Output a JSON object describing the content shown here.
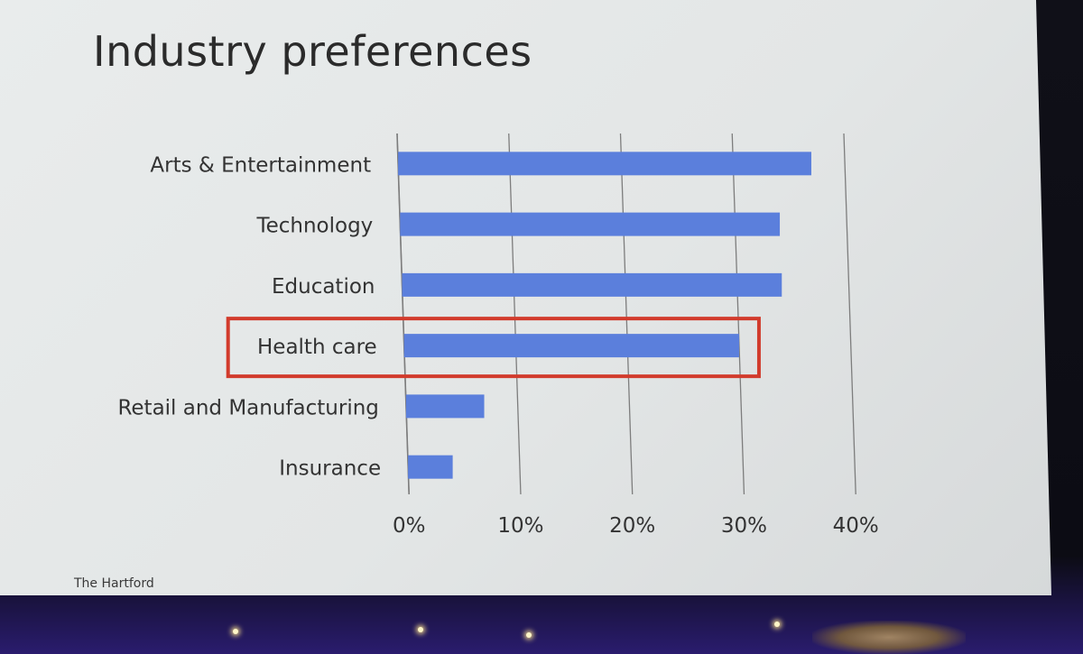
{
  "slide": {
    "title": "Industry preferences",
    "source": "The Hartford"
  },
  "colors": {
    "bar": "#5b7fdc",
    "highlight_box": "#d23b2c",
    "gridline": "#7d7d7d",
    "text": "#333333"
  },
  "chart_data": {
    "type": "bar",
    "orientation": "horizontal",
    "title": "Industry preferences",
    "categories": [
      "Arts & Entertainment",
      "Technology",
      "Education",
      "Health care",
      "Retail and Manufacturing",
      "Insurance"
    ],
    "values": [
      37,
      34,
      34,
      30,
      7,
      4
    ],
    "unit": "%",
    "xlim": [
      0,
      40
    ],
    "xticks": [
      "0%",
      "10%",
      "20%",
      "30%",
      "40%"
    ],
    "grid": true,
    "highlighted_category": "Health care"
  }
}
